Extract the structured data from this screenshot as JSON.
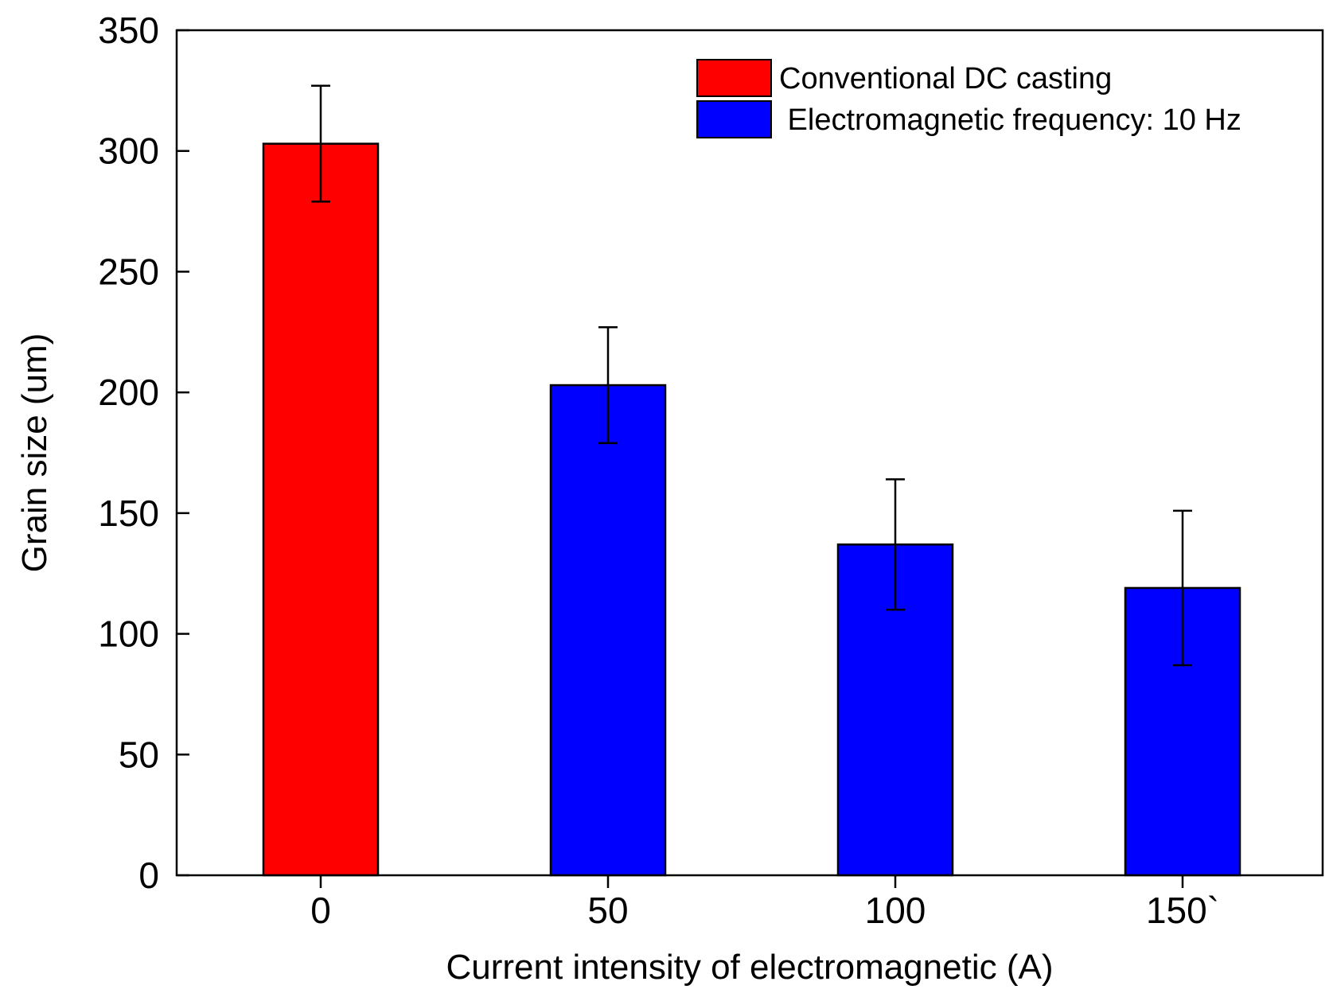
{
  "chart_data": {
    "type": "bar",
    "title": "",
    "xlabel": "Current  intensity of electromagnetic (A)",
    "ylabel": "Grain size (um)",
    "ylim": [
      0,
      350
    ],
    "yticks": [
      0,
      50,
      100,
      150,
      200,
      250,
      300,
      350
    ],
    "ytick_labels": [
      "0",
      "50",
      "100",
      "150",
      "200",
      "250",
      "300",
      "350"
    ],
    "categories": [
      "0",
      "50",
      "100",
      "150`"
    ],
    "values": [
      303,
      203,
      137,
      119
    ],
    "errors": [
      24,
      24,
      27,
      32
    ],
    "bar_series": [
      0,
      1,
      1,
      1
    ],
    "series": [
      {
        "name": "Conventional DC casting",
        "color": "#ff0000"
      },
      {
        "name": " Electromagnetic frequency: 10 Hz",
        "color": "#0000ff"
      }
    ],
    "legend_position": "top-right",
    "grid": false
  }
}
